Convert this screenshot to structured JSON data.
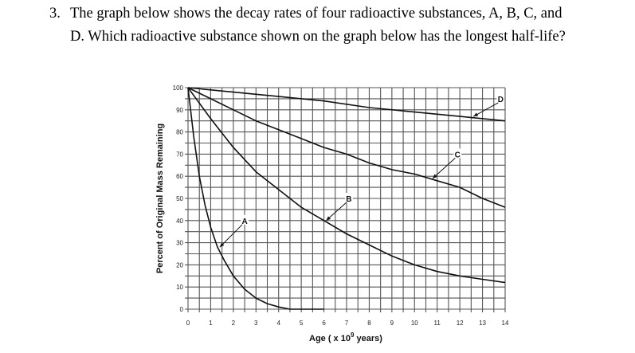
{
  "question": {
    "number": "3.",
    "line1": "The graph below shows the decay rates of four radioactive substances, A, B, C, and",
    "line2": "D. Which radioactive substance shown on the graph below has the longest half-life?"
  },
  "chart_data": {
    "type": "line",
    "title": "",
    "xlabel": "Age ( x 10",
    "xlabel_superscript": "9",
    "xlabel_suffix": " years)",
    "ylabel": "Percent of Original Mass Remaining",
    "xlim": [
      0,
      14
    ],
    "ylim": [
      0,
      100
    ],
    "xticks": [
      "0",
      "1",
      "2",
      "3",
      "4",
      "5",
      "6",
      "7",
      "8",
      "9",
      "10",
      "11",
      "12",
      "13",
      "14"
    ],
    "yticks": [
      "0",
      "10",
      "20",
      "30",
      "40",
      "50",
      "60",
      "70",
      "80",
      "90",
      "100"
    ],
    "grid": true,
    "grid_minor_x": 0.5,
    "grid_minor_y": 5,
    "line_color": "#111111",
    "series": [
      {
        "name": "A",
        "x": [
          0,
          0.25,
          0.5,
          0.75,
          1,
          1.3,
          1.6,
          2,
          2.5,
          3,
          3.5,
          4,
          4.5,
          5,
          6
        ],
        "values": [
          100,
          78,
          60,
          47,
          37,
          28,
          22,
          15,
          9,
          5,
          2.5,
          1,
          0,
          0,
          0
        ]
      },
      {
        "name": "B",
        "x": [
          0,
          1,
          2,
          3,
          4,
          5,
          6,
          7,
          8,
          9,
          10,
          11,
          12,
          13,
          14
        ],
        "values": [
          100,
          86,
          73,
          62,
          54,
          46,
          40,
          34,
          29,
          24,
          20,
          17,
          15,
          13.5,
          12
        ]
      },
      {
        "name": "C",
        "x": [
          0,
          1,
          2,
          3,
          4,
          5,
          6,
          7,
          8,
          9,
          10,
          11,
          12,
          13,
          14
        ],
        "values": [
          100,
          95,
          90,
          85,
          81,
          77,
          73,
          70,
          66,
          63,
          61,
          58,
          55,
          50,
          46
        ]
      },
      {
        "name": "D",
        "x": [
          0,
          2,
          4,
          6,
          8,
          10,
          12,
          14
        ],
        "values": [
          100,
          98,
          96,
          94,
          91,
          89,
          87,
          85
        ]
      }
    ],
    "annotations": [
      {
        "text": "A",
        "label_at": [
          2.5,
          40
        ],
        "arrow_to": [
          1.4,
          28
        ]
      },
      {
        "text": "B",
        "label_at": [
          7.1,
          50
        ],
        "arrow_to": [
          6.1,
          40
        ]
      },
      {
        "text": "C",
        "label_at": [
          11.9,
          70
        ],
        "arrow_to": [
          10.8,
          59
        ]
      },
      {
        "text": "D",
        "label_at": [
          13.8,
          95
        ],
        "arrow_to": [
          12.6,
          87
        ]
      }
    ]
  }
}
